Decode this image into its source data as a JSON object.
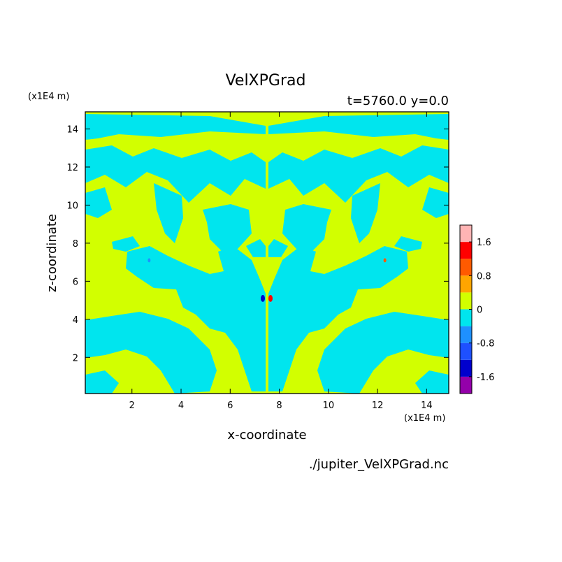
{
  "chart_data": {
    "type": "heatmap",
    "title": "VelXPGrad",
    "subtitle": "t=5760.0 y=0.0",
    "xlabel": "x-coordinate",
    "ylabel": "z-coordinate",
    "x_unit": "(x1E4 m)",
    "y_unit": "(x1E4 m)",
    "source": "./jupiter_VelXPGrad.nc",
    "xlim": [
      0.1,
      14.9
    ],
    "ylim": [
      0.1,
      14.9
    ],
    "x_ticks": [
      2,
      4,
      6,
      8,
      10,
      12,
      14
    ],
    "y_ticks": [
      2,
      4,
      6,
      8,
      10,
      12,
      14
    ],
    "grid": false,
    "colorbar": {
      "position": "right",
      "levels": [
        -2.0,
        -1.6,
        -1.2,
        -0.8,
        -0.4,
        0,
        0.4,
        0.8,
        1.2,
        1.6,
        2.0
      ],
      "colors": [
        "#9400aa",
        "#0000cd",
        "#1e50ff",
        "#1e90ff",
        "#00e5ee",
        "#d2ff00",
        "#ffa500",
        "#ff5a00",
        "#ff0000",
        "#ffb4b4"
      ],
      "tick_labels": [
        "-1.6",
        "-0.8",
        "0",
        "0.8",
        "1.6"
      ],
      "tick_values": [
        -1.6,
        -0.8,
        0,
        0.8,
        1.6
      ]
    },
    "dominant_levels": [
      "-0.4 to 0",
      "0 to 0.4"
    ],
    "symmetry": "mirror about x=7.5 with sign change"
  }
}
